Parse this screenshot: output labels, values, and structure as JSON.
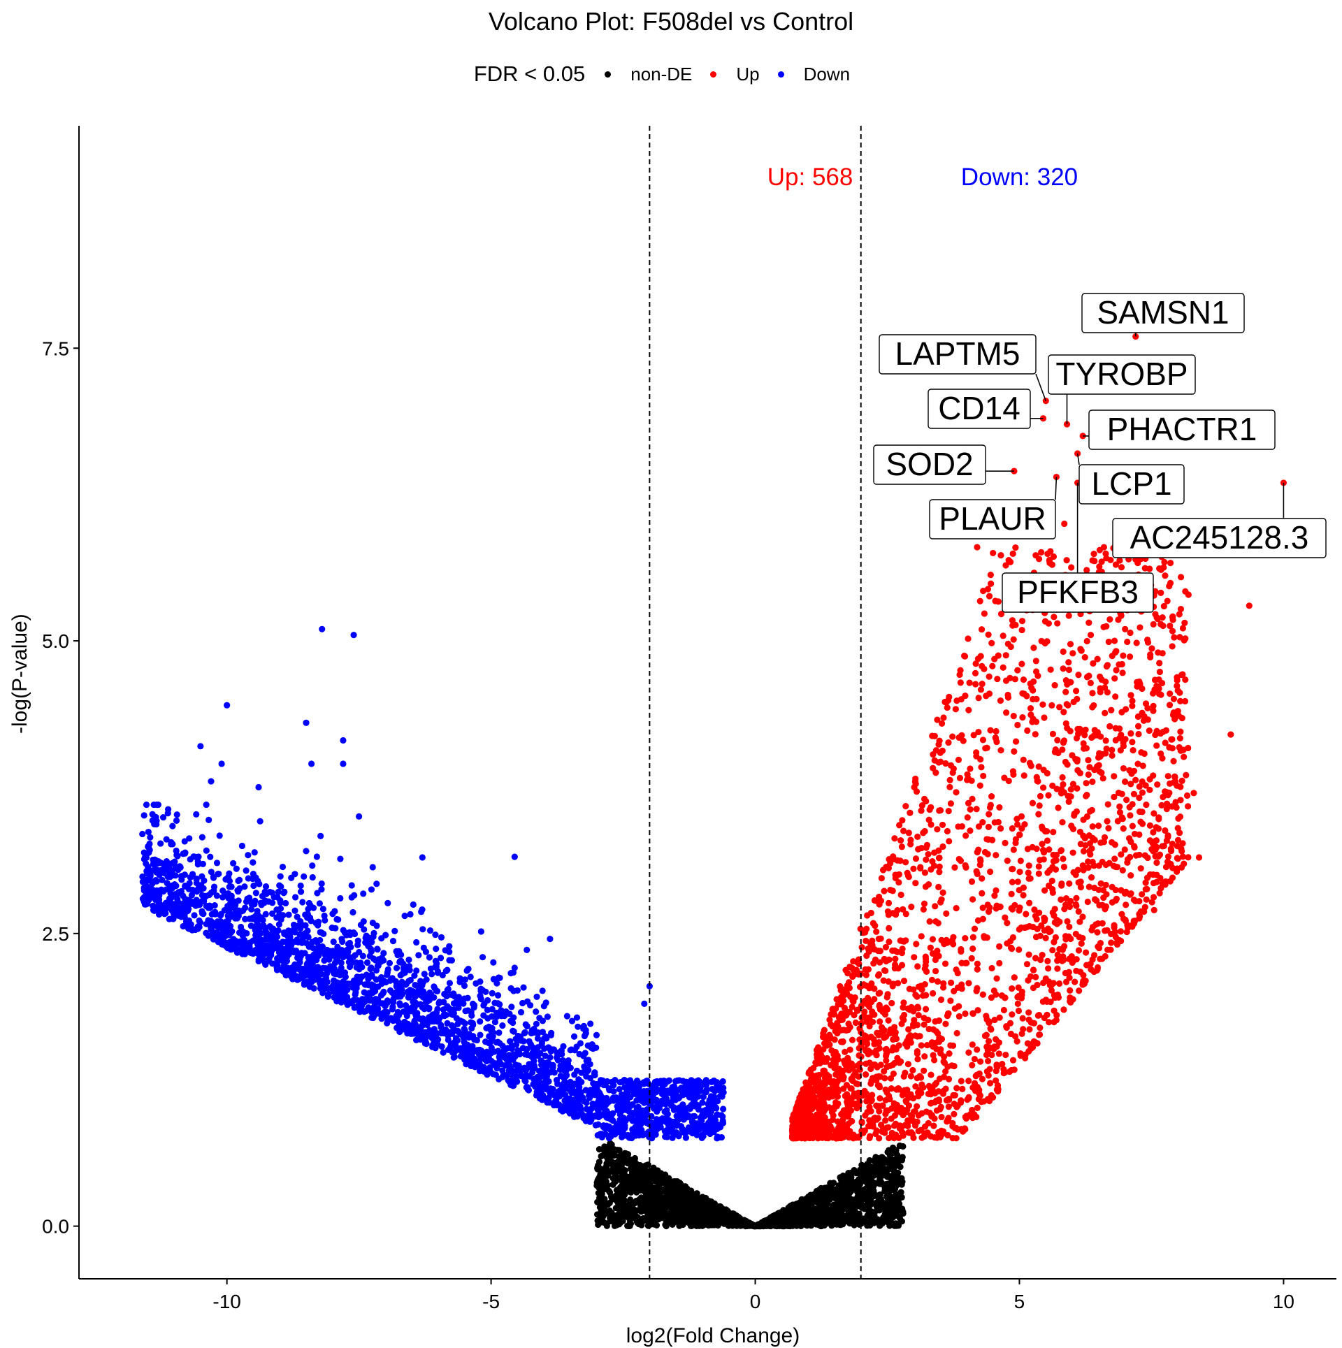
{
  "chart_data": {
    "type": "scatter",
    "title": "Volcano Plot: F508del vs Control",
    "xlabel": "log2(Fold Change)",
    "ylabel": "-log(P-value)",
    "xlim": [
      -12.8,
      11.0
    ],
    "ylim": [
      -0.45,
      9.4
    ],
    "xticks": [
      -10,
      -5,
      0,
      5,
      10
    ],
    "yticks": [
      0.0,
      2.5,
      5.0,
      7.5
    ],
    "xtick_labels": [
      "-10",
      "-5",
      "0",
      "5",
      "10"
    ],
    "ytick_labels": [
      "0.0",
      "2.5",
      "5.0",
      "7.5"
    ],
    "grid": false,
    "legend": {
      "title": "FDR < 0.05",
      "placement": "top",
      "entries": [
        {
          "label": "non-DE",
          "color": "#000000"
        },
        {
          "label": "Up",
          "color": "#ff0000"
        },
        {
          "label": "Down",
          "color": "#0000ff"
        }
      ]
    },
    "thresholds_x": [
      -2,
      2
    ],
    "annotations": [
      {
        "text": "Up: 568",
        "x": 1.0,
        "y": 9.0,
        "color": "#ff0000"
      },
      {
        "text": "Down: 320",
        "x": 5.0,
        "y": 9.0,
        "color": "#0000ff"
      }
    ],
    "labeled_genes": [
      {
        "gene": "SAMSN1",
        "x": 7.2,
        "y": 7.6
      },
      {
        "gene": "LAPTM5",
        "x": 5.5,
        "y": 7.05
      },
      {
        "gene": "TYROBP",
        "x": 5.9,
        "y": 6.85
      },
      {
        "gene": "CD14",
        "x": 5.45,
        "y": 6.9
      },
      {
        "gene": "PHACTR1",
        "x": 6.2,
        "y": 6.75
      },
      {
        "gene": "SOD2",
        "x": 4.9,
        "y": 6.45
      },
      {
        "gene": "LCP1",
        "x": 6.1,
        "y": 6.6
      },
      {
        "gene": "AC245128.3",
        "x": 10.0,
        "y": 6.35
      },
      {
        "gene": "PLAUR",
        "x": 5.7,
        "y": 6.4
      },
      {
        "gene": "PFKFB3",
        "x": 6.1,
        "y": 6.35
      }
    ],
    "series": [
      {
        "name": "Up",
        "color": "#ff0000",
        "highlight_points": [
          [
            7.6,
            5.2
          ],
          [
            9.35,
            5.3
          ],
          [
            9.0,
            4.2
          ],
          [
            8.0,
            4.4
          ],
          [
            8.3,
            3.7
          ],
          [
            8.0,
            3.4
          ],
          [
            8.4,
            3.15
          ],
          [
            7.6,
            3.0
          ],
          [
            7.55,
            2.7
          ],
          [
            7.4,
            3.6
          ],
          [
            7.0,
            5.1
          ],
          [
            6.8,
            5.0
          ],
          [
            6.35,
            5.05
          ],
          [
            6.6,
            5.8
          ],
          [
            7.3,
            5.7
          ],
          [
            5.85,
            6.0
          ],
          [
            5.6,
            5.9
          ],
          [
            4.2,
            5.8
          ],
          [
            4.5,
            5.75
          ]
        ],
        "cloud": {
          "count": 2600,
          "x_range": [
            0.7,
            8.2
          ],
          "y_floor": 0.75,
          "y_max": 5.9
        }
      },
      {
        "name": "Down",
        "color": "#0000ff",
        "highlight_points": [
          [
            -8.2,
            5.1
          ],
          [
            -7.6,
            5.05
          ],
          [
            -10.0,
            4.45
          ],
          [
            -10.5,
            4.1
          ],
          [
            -8.5,
            4.3
          ],
          [
            -7.8,
            4.15
          ],
          [
            -10.1,
            3.95
          ],
          [
            -8.4,
            3.95
          ],
          [
            -7.8,
            3.95
          ],
          [
            -10.3,
            3.8
          ],
          [
            -9.4,
            3.75
          ],
          [
            -11.3,
            3.6
          ],
          [
            -7.5,
            3.5
          ],
          [
            -11.6,
            3.35
          ],
          [
            -2.0,
            2.05
          ],
          [
            -2.1,
            1.9
          ],
          [
            -6.3,
            3.15
          ]
        ],
        "cloud": {
          "count": 2600,
          "x_range": [
            -11.6,
            -0.6
          ],
          "y_floor": 0.75,
          "y_max": 3.4
        }
      },
      {
        "name": "non-DE",
        "color": "#000000",
        "cloud": {
          "count": 2200,
          "x_range": [
            -3.0,
            2.8
          ],
          "y_floor": 0.0,
          "y_max": 0.75
        }
      }
    ]
  }
}
